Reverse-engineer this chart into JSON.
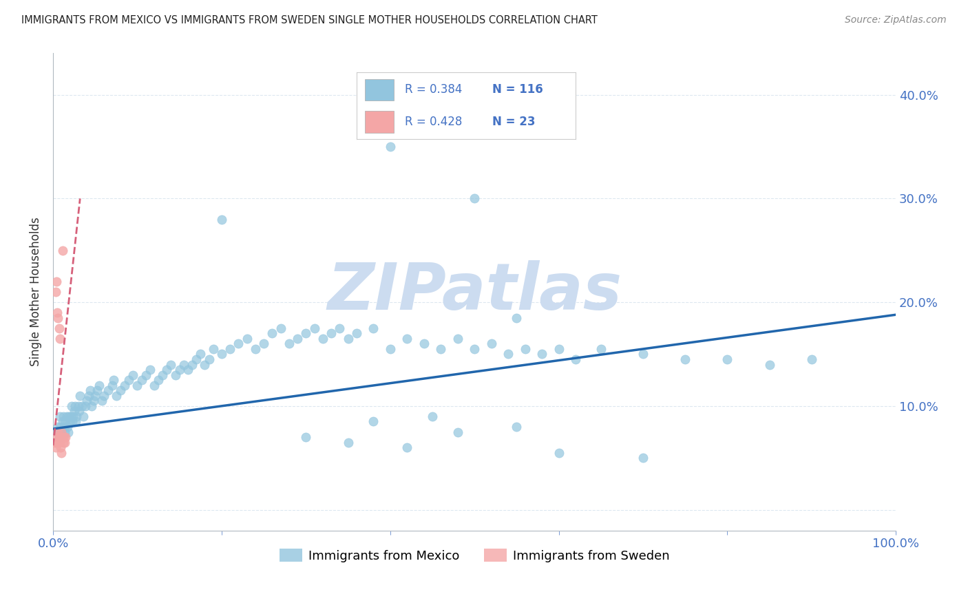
{
  "title": "IMMIGRANTS FROM MEXICO VS IMMIGRANTS FROM SWEDEN SINGLE MOTHER HOUSEHOLDS CORRELATION CHART",
  "source": "Source: ZipAtlas.com",
  "ylabel": "Single Mother Households",
  "R_mexico": "0.384",
  "N_mexico": "116",
  "R_sweden": "0.428",
  "N_sweden": "23",
  "color_mexico": "#92c5de",
  "color_sweden": "#f4a6a6",
  "color_trendline_mexico": "#2166ac",
  "color_trendline_sweden": "#d6607a",
  "watermark": "ZIPatlas",
  "watermark_color": "#ccdcf0",
  "legend_mexico": "Immigrants from Mexico",
  "legend_sweden": "Immigrants from Sweden",
  "background_color": "#ffffff",
  "xlim": [
    0.0,
    1.0
  ],
  "ylim": [
    -0.02,
    0.44
  ],
  "trend_mexico_x0": 0.0,
  "trend_mexico_y0": 0.078,
  "trend_mexico_x1": 1.0,
  "trend_mexico_y1": 0.188,
  "trend_sweden_x0": 0.0,
  "trend_sweden_y0": 0.062,
  "trend_sweden_x1": 0.032,
  "trend_sweden_y1": 0.3,
  "mexico_x": [
    0.005,
    0.006,
    0.007,
    0.008,
    0.009,
    0.01,
    0.011,
    0.012,
    0.013,
    0.014,
    0.015,
    0.016,
    0.017,
    0.018,
    0.019,
    0.02,
    0.021,
    0.022,
    0.023,
    0.024,
    0.025,
    0.026,
    0.027,
    0.028,
    0.03,
    0.031,
    0.032,
    0.034,
    0.036,
    0.038,
    0.04,
    0.042,
    0.044,
    0.046,
    0.048,
    0.05,
    0.052,
    0.055,
    0.058,
    0.06,
    0.065,
    0.07,
    0.072,
    0.075,
    0.08,
    0.085,
    0.09,
    0.095,
    0.1,
    0.105,
    0.11,
    0.115,
    0.12,
    0.125,
    0.13,
    0.135,
    0.14,
    0.145,
    0.15,
    0.155,
    0.16,
    0.165,
    0.17,
    0.175,
    0.18,
    0.185,
    0.19,
    0.2,
    0.21,
    0.22,
    0.23,
    0.24,
    0.25,
    0.26,
    0.27,
    0.28,
    0.29,
    0.3,
    0.31,
    0.32,
    0.33,
    0.34,
    0.35,
    0.36,
    0.38,
    0.4,
    0.42,
    0.44,
    0.46,
    0.48,
    0.5,
    0.52,
    0.54,
    0.56,
    0.58,
    0.6,
    0.62,
    0.65,
    0.7,
    0.75,
    0.8,
    0.85,
    0.9,
    0.45,
    0.38,
    0.55,
    0.48,
    0.3,
    0.35,
    0.42,
    0.6,
    0.7,
    0.55,
    0.5,
    0.4,
    0.2
  ],
  "mexico_y": [
    0.075,
    0.08,
    0.07,
    0.09,
    0.08,
    0.075,
    0.085,
    0.09,
    0.08,
    0.075,
    0.085,
    0.09,
    0.08,
    0.075,
    0.09,
    0.085,
    0.09,
    0.1,
    0.085,
    0.09,
    0.095,
    0.1,
    0.085,
    0.09,
    0.1,
    0.095,
    0.11,
    0.1,
    0.09,
    0.1,
    0.105,
    0.11,
    0.115,
    0.1,
    0.105,
    0.11,
    0.115,
    0.12,
    0.105,
    0.11,
    0.115,
    0.12,
    0.125,
    0.11,
    0.115,
    0.12,
    0.125,
    0.13,
    0.12,
    0.125,
    0.13,
    0.135,
    0.12,
    0.125,
    0.13,
    0.135,
    0.14,
    0.13,
    0.135,
    0.14,
    0.135,
    0.14,
    0.145,
    0.15,
    0.14,
    0.145,
    0.155,
    0.15,
    0.155,
    0.16,
    0.165,
    0.155,
    0.16,
    0.17,
    0.175,
    0.16,
    0.165,
    0.17,
    0.175,
    0.165,
    0.17,
    0.175,
    0.165,
    0.17,
    0.175,
    0.155,
    0.165,
    0.16,
    0.155,
    0.165,
    0.155,
    0.16,
    0.15,
    0.155,
    0.15,
    0.155,
    0.145,
    0.155,
    0.15,
    0.145,
    0.145,
    0.14,
    0.145,
    0.09,
    0.085,
    0.08,
    0.075,
    0.07,
    0.065,
    0.06,
    0.055,
    0.05,
    0.185,
    0.3,
    0.35,
    0.28
  ],
  "sweden_x": [
    0.002,
    0.003,
    0.004,
    0.005,
    0.006,
    0.007,
    0.008,
    0.009,
    0.01,
    0.011,
    0.012,
    0.013,
    0.014,
    0.015,
    0.003,
    0.004,
    0.005,
    0.006,
    0.007,
    0.008,
    0.009,
    0.01,
    0.011
  ],
  "sweden_y": [
    0.065,
    0.06,
    0.07,
    0.065,
    0.075,
    0.07,
    0.065,
    0.07,
    0.075,
    0.07,
    0.065,
    0.07,
    0.065,
    0.07,
    0.21,
    0.22,
    0.19,
    0.185,
    0.175,
    0.165,
    0.06,
    0.055,
    0.25
  ]
}
